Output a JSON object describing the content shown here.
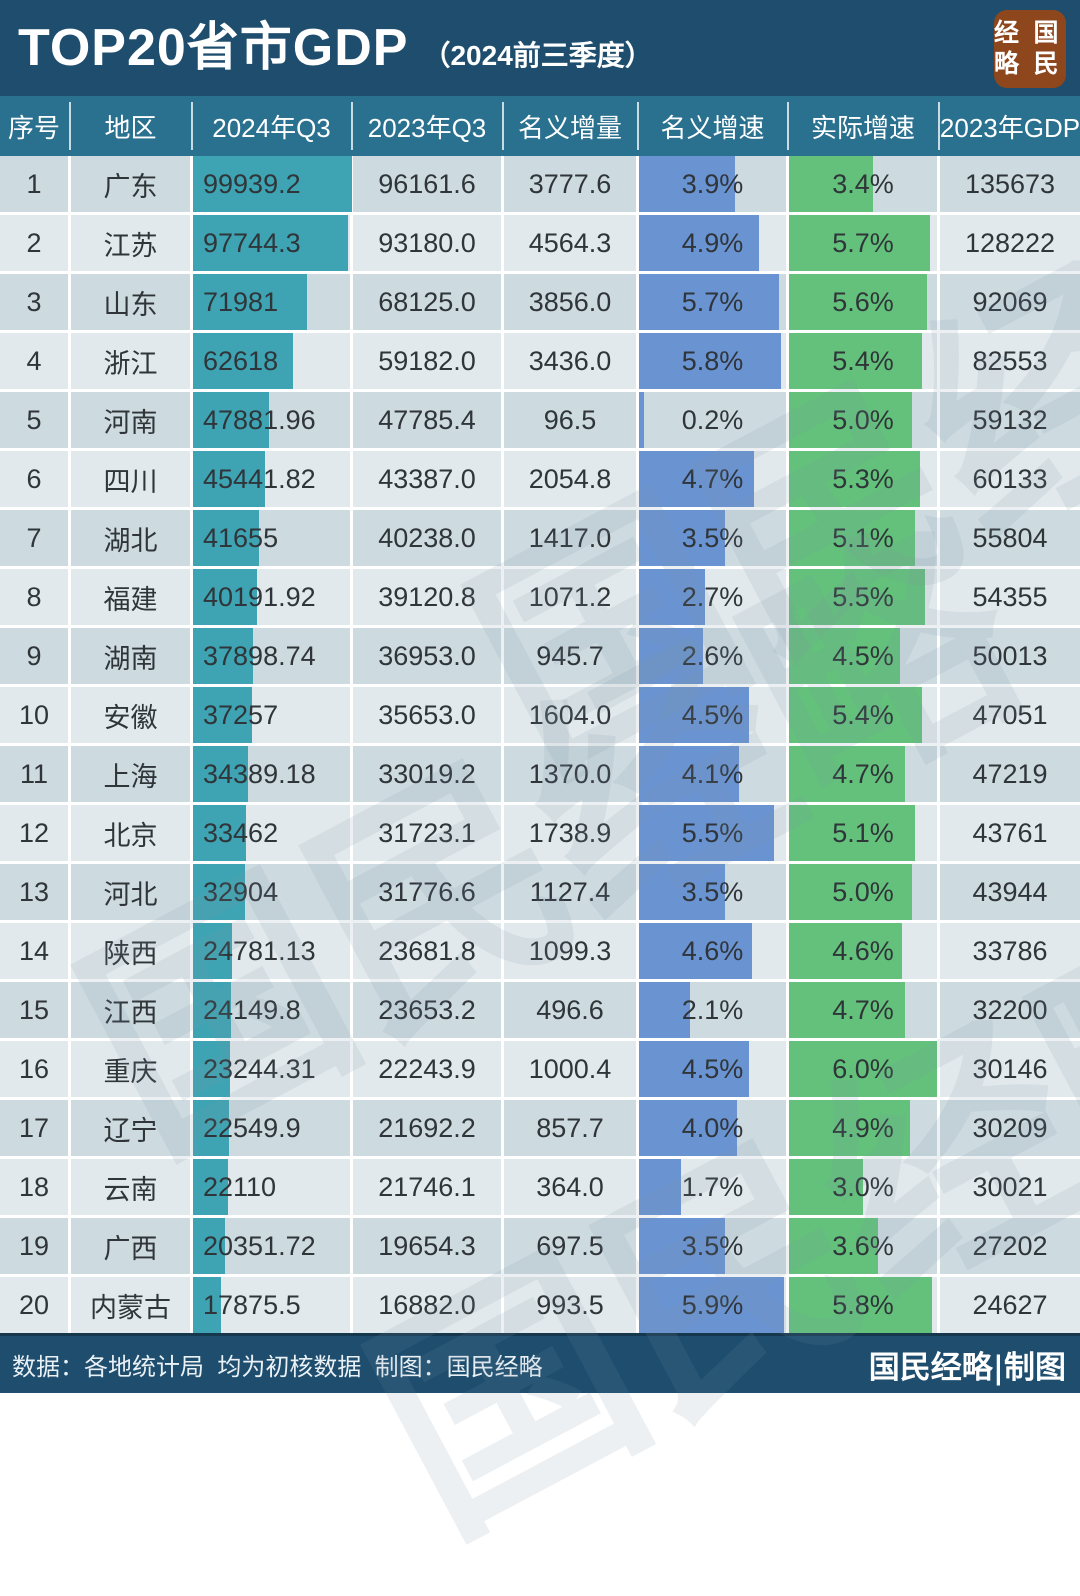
{
  "title": {
    "main": "TOP20省市GDP",
    "subtitle": "（2024前三季度）"
  },
  "logo": {
    "left_column": "经略",
    "right_column": "国民"
  },
  "watermark": {
    "text": "国民经略"
  },
  "colors": {
    "title_bar_bg": "#1E4D6E",
    "header_bg": "#2A7190",
    "row_odd_bg": "#CDDAE0",
    "row_even_bg": "#E1E9EC",
    "bar_2024": "#3EA4B3",
    "bar_nominal_growth": "#6A93D2",
    "bar_real_growth": "#63C17B",
    "logo_bg": "#8E461C",
    "text": "#2F3539"
  },
  "chart_data": {
    "type": "table",
    "title": "TOP20省市GDP（2024前三季度）",
    "columns": [
      "序号",
      "地区",
      "2024年Q3",
      "2023年Q3",
      "名义增量",
      "名义增速",
      "实际增速",
      "2023年GDP"
    ],
    "bar_scales": {
      "gdp_axis_max": 100000,
      "growth_axis_max_pct": 6.0
    },
    "rows": [
      {
        "rank": "1",
        "region": "广东",
        "gdp_2024_q3": "99939.2",
        "gdp_2023_q3": "96161.6",
        "nominal_increase": "3777.6",
        "nominal_growth": "3.9%",
        "real_growth": "3.4%",
        "gdp_2023": "135673"
      },
      {
        "rank": "2",
        "region": "江苏",
        "gdp_2024_q3": "97744.3",
        "gdp_2023_q3": "93180.0",
        "nominal_increase": "4564.3",
        "nominal_growth": "4.9%",
        "real_growth": "5.7%",
        "gdp_2023": "128222"
      },
      {
        "rank": "3",
        "region": "山东",
        "gdp_2024_q3": "71981",
        "gdp_2023_q3": "68125.0",
        "nominal_increase": "3856.0",
        "nominal_growth": "5.7%",
        "real_growth": "5.6%",
        "gdp_2023": "92069"
      },
      {
        "rank": "4",
        "region": "浙江",
        "gdp_2024_q3": "62618",
        "gdp_2023_q3": "59182.0",
        "nominal_increase": "3436.0",
        "nominal_growth": "5.8%",
        "real_growth": "5.4%",
        "gdp_2023": "82553"
      },
      {
        "rank": "5",
        "region": "河南",
        "gdp_2024_q3": "47881.96",
        "gdp_2023_q3": "47785.4",
        "nominal_increase": "96.5",
        "nominal_growth": "0.2%",
        "real_growth": "5.0%",
        "gdp_2023": "59132"
      },
      {
        "rank": "6",
        "region": "四川",
        "gdp_2024_q3": "45441.82",
        "gdp_2023_q3": "43387.0",
        "nominal_increase": "2054.8",
        "nominal_growth": "4.7%",
        "real_growth": "5.3%",
        "gdp_2023": "60133"
      },
      {
        "rank": "7",
        "region": "湖北",
        "gdp_2024_q3": "41655",
        "gdp_2023_q3": "40238.0",
        "nominal_increase": "1417.0",
        "nominal_growth": "3.5%",
        "real_growth": "5.1%",
        "gdp_2023": "55804"
      },
      {
        "rank": "8",
        "region": "福建",
        "gdp_2024_q3": "40191.92",
        "gdp_2023_q3": "39120.8",
        "nominal_increase": "1071.2",
        "nominal_growth": "2.7%",
        "real_growth": "5.5%",
        "gdp_2023": "54355"
      },
      {
        "rank": "9",
        "region": "湖南",
        "gdp_2024_q3": "37898.74",
        "gdp_2023_q3": "36953.0",
        "nominal_increase": "945.7",
        "nominal_growth": "2.6%",
        "real_growth": "4.5%",
        "gdp_2023": "50013"
      },
      {
        "rank": "10",
        "region": "安徽",
        "gdp_2024_q3": "37257",
        "gdp_2023_q3": "35653.0",
        "nominal_increase": "1604.0",
        "nominal_growth": "4.5%",
        "real_growth": "5.4%",
        "gdp_2023": "47051"
      },
      {
        "rank": "11",
        "region": "上海",
        "gdp_2024_q3": "34389.18",
        "gdp_2023_q3": "33019.2",
        "nominal_increase": "1370.0",
        "nominal_growth": "4.1%",
        "real_growth": "4.7%",
        "gdp_2023": "47219"
      },
      {
        "rank": "12",
        "region": "北京",
        "gdp_2024_q3": "33462",
        "gdp_2023_q3": "31723.1",
        "nominal_increase": "1738.9",
        "nominal_growth": "5.5%",
        "real_growth": "5.1%",
        "gdp_2023": "43761"
      },
      {
        "rank": "13",
        "region": "河北",
        "gdp_2024_q3": "32904",
        "gdp_2023_q3": "31776.6",
        "nominal_increase": "1127.4",
        "nominal_growth": "3.5%",
        "real_growth": "5.0%",
        "gdp_2023": "43944"
      },
      {
        "rank": "14",
        "region": "陕西",
        "gdp_2024_q3": "24781.13",
        "gdp_2023_q3": "23681.8",
        "nominal_increase": "1099.3",
        "nominal_growth": "4.6%",
        "real_growth": "4.6%",
        "gdp_2023": "33786"
      },
      {
        "rank": "15",
        "region": "江西",
        "gdp_2024_q3": "24149.8",
        "gdp_2023_q3": "23653.2",
        "nominal_increase": "496.6",
        "nominal_growth": "2.1%",
        "real_growth": "4.7%",
        "gdp_2023": "32200"
      },
      {
        "rank": "16",
        "region": "重庆",
        "gdp_2024_q3": "23244.31",
        "gdp_2023_q3": "22243.9",
        "nominal_increase": "1000.4",
        "nominal_growth": "4.5%",
        "real_growth": "6.0%",
        "gdp_2023": "30146"
      },
      {
        "rank": "17",
        "region": "辽宁",
        "gdp_2024_q3": "22549.9",
        "gdp_2023_q3": "21692.2",
        "nominal_increase": "857.7",
        "nominal_growth": "4.0%",
        "real_growth": "4.9%",
        "gdp_2023": "30209"
      },
      {
        "rank": "18",
        "region": "云南",
        "gdp_2024_q3": "22110",
        "gdp_2023_q3": "21746.1",
        "nominal_increase": "364.0",
        "nominal_growth": "1.7%",
        "real_growth": "3.0%",
        "gdp_2023": "30021"
      },
      {
        "rank": "19",
        "region": "广西",
        "gdp_2024_q3": "20351.72",
        "gdp_2023_q3": "19654.3",
        "nominal_increase": "697.5",
        "nominal_growth": "3.5%",
        "real_growth": "3.6%",
        "gdp_2023": "27202"
      },
      {
        "rank": "20",
        "region": "内蒙古",
        "gdp_2024_q3": "17875.5",
        "gdp_2023_q3": "16882.0",
        "nominal_increase": "993.5",
        "nominal_growth": "5.9%",
        "real_growth": "5.8%",
        "gdp_2023": "24627"
      }
    ]
  },
  "footer": {
    "left": "数据：各地统计局  均为初核数据  制图：国民经略",
    "right": "国民经略|制图"
  }
}
